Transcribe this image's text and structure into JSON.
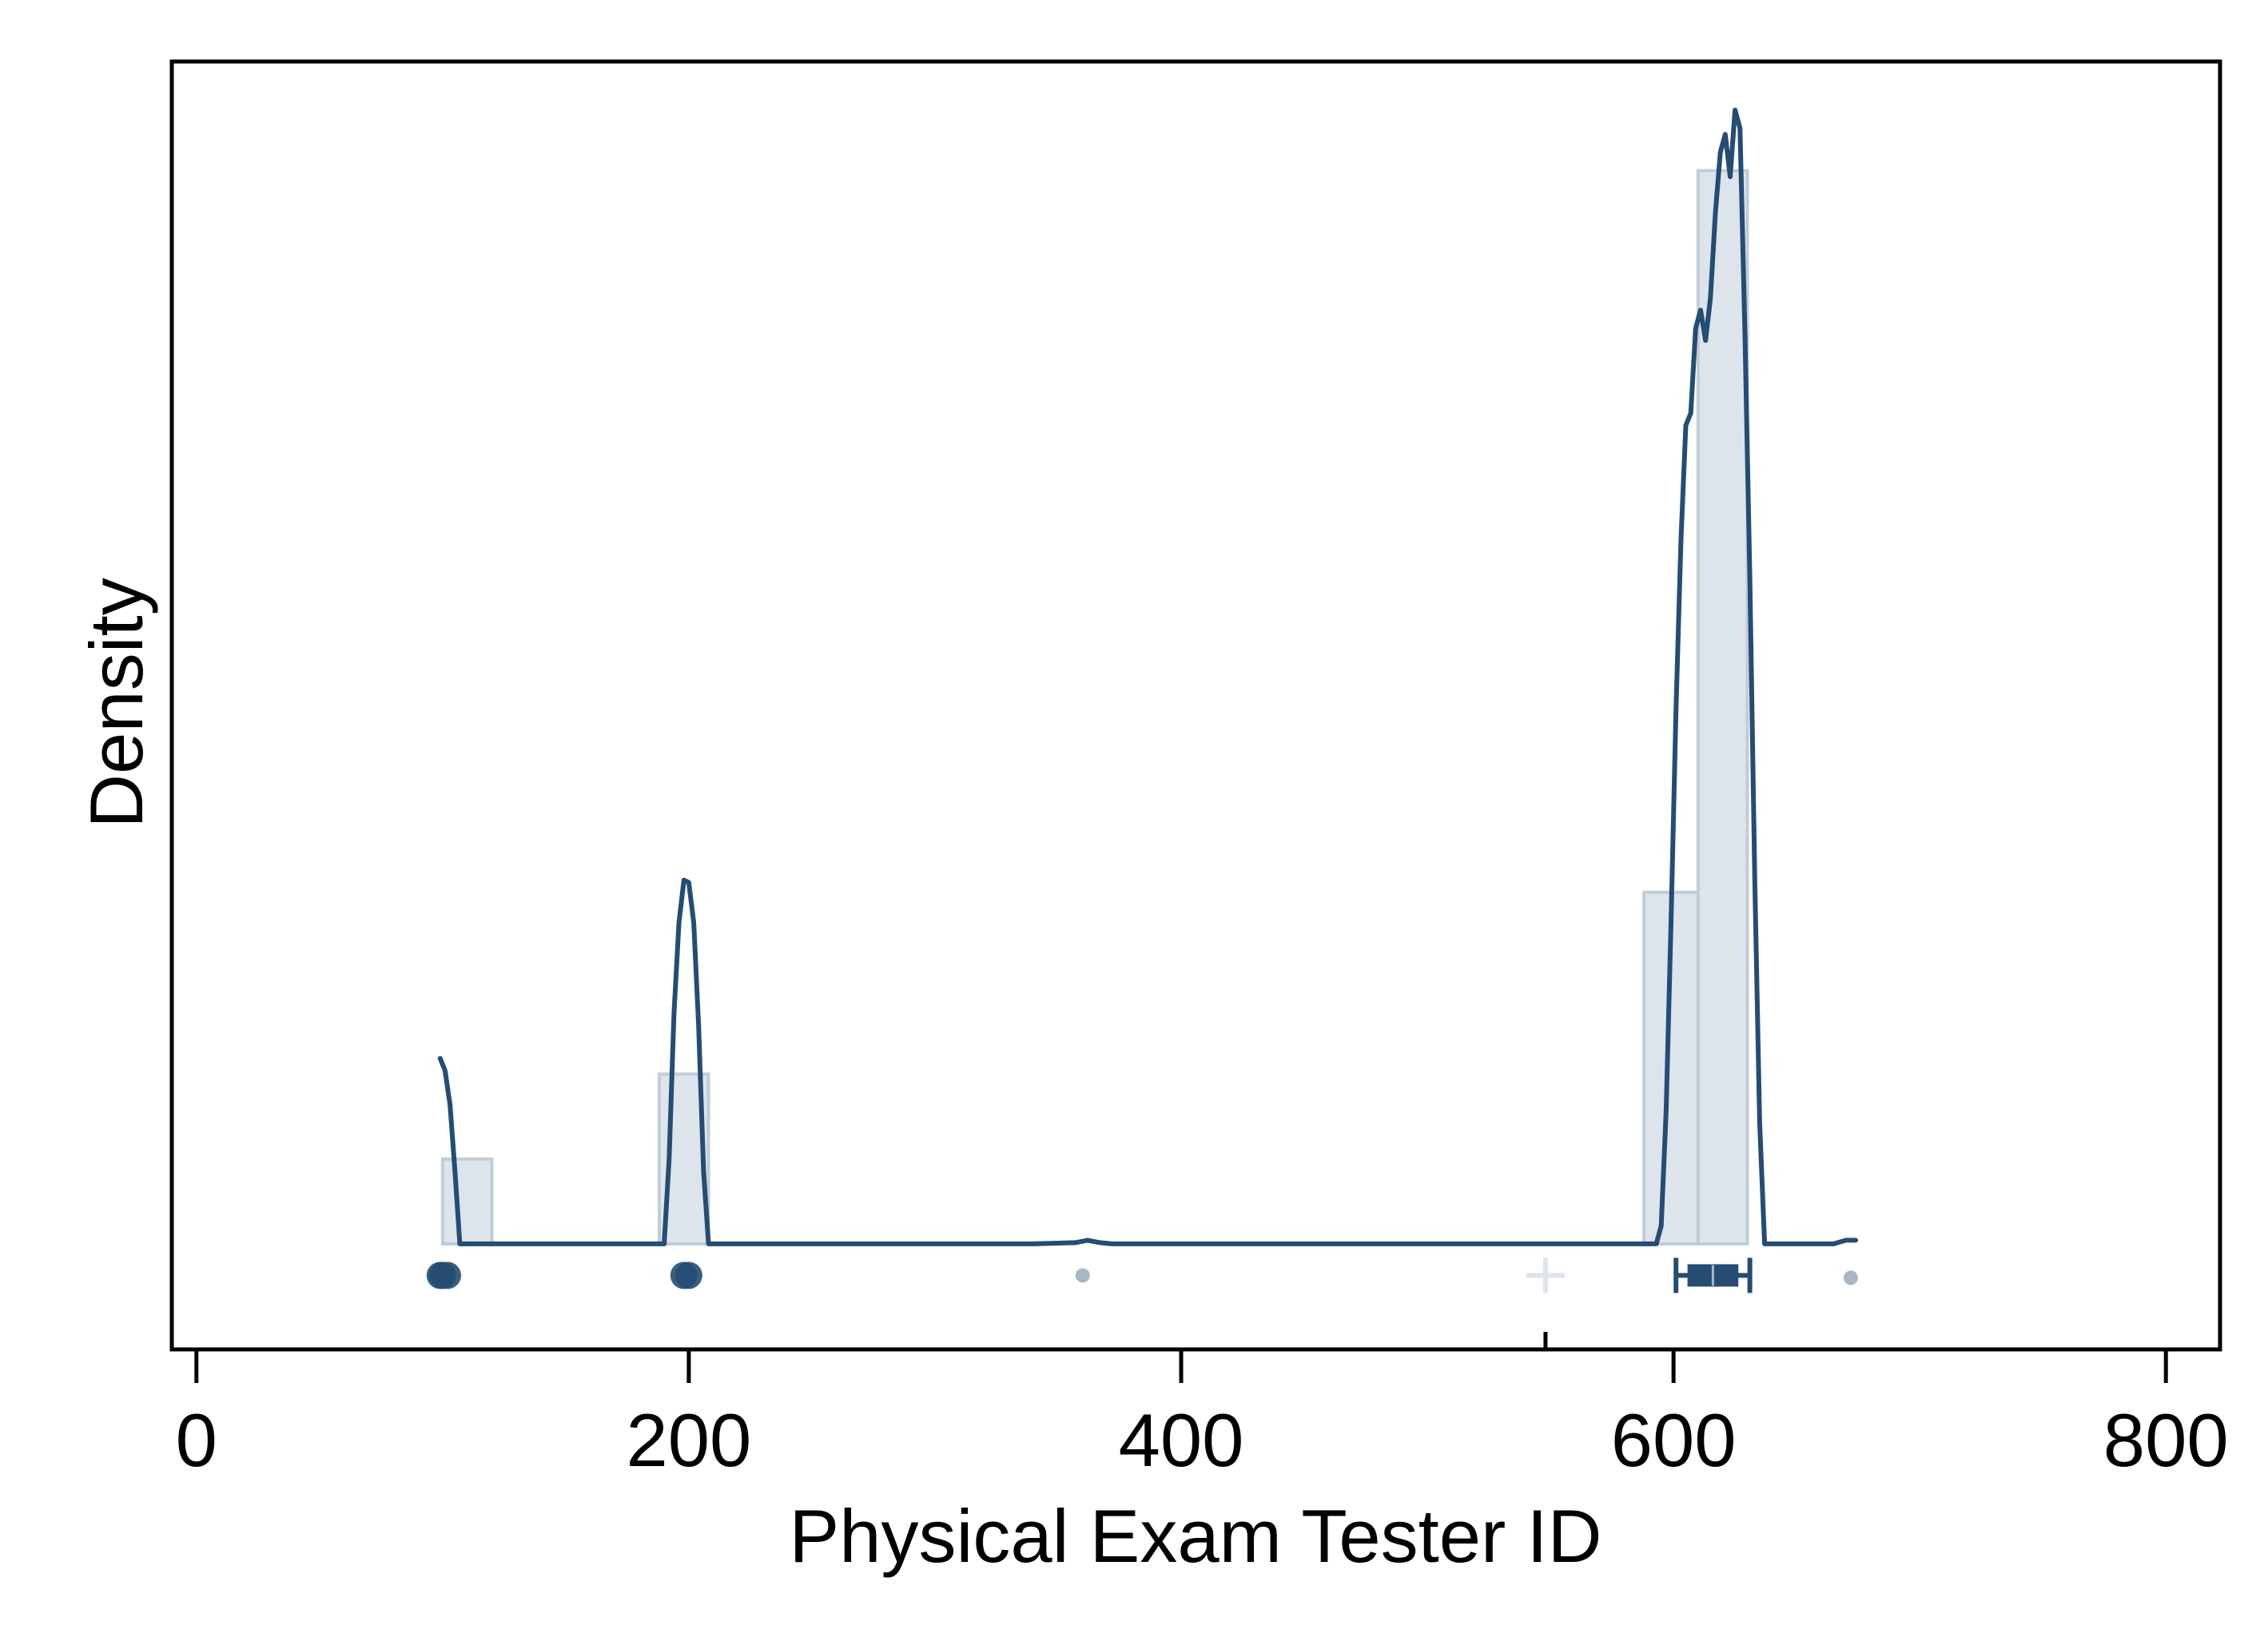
{
  "chart_data": {
    "type": "histogram-density",
    "title": "",
    "xlabel": "Physical Exam Tester ID",
    "ylabel": "Density",
    "xlim": [
      -10,
      822
    ],
    "ylim": [
      -0.00087,
      0.00975
    ],
    "x_ticks": [
      0,
      200,
      400,
      600,
      800
    ],
    "x_tick_labels": [
      "0",
      "200",
      "400",
      "600",
      "800"
    ],
    "minor_x_ticks": [
      548
    ],
    "y_ticks_shown": false,
    "grid": false,
    "legend": "none",
    "colors": {
      "bar_fill": "#dde4ec",
      "bar_stroke": "#c2ccd6",
      "density_line": "#264c73",
      "box": "#264c73",
      "outlier_light": "#a8b7c6",
      "mean_marker": "#dde4ec"
    },
    "histogram": {
      "bins": [
        {
          "x0": 100,
          "x1": 120,
          "density": 0.0007
        },
        {
          "x0": 188,
          "x1": 208,
          "density": 0.0014
        },
        {
          "x0": 588,
          "x1": 610,
          "density": 0.0029
        },
        {
          "x0": 610,
          "x1": 630,
          "density": 0.00885
        }
      ]
    },
    "density_curve": [
      [
        99,
        0.00153
      ],
      [
        101,
        0.00143
      ],
      [
        103,
        0.00115
      ],
      [
        105,
        0.0006
      ],
      [
        107,
        0.0
      ],
      [
        190,
        0.0
      ],
      [
        192,
        0.0007
      ],
      [
        194,
        0.0019
      ],
      [
        196,
        0.00265
      ],
      [
        198,
        0.003
      ],
      [
        200,
        0.00298
      ],
      [
        202,
        0.00265
      ],
      [
        204,
        0.0018
      ],
      [
        206,
        0.0006
      ],
      [
        208,
        0.0
      ],
      [
        340,
        0.0
      ],
      [
        357,
        1e-05
      ],
      [
        362,
        3e-05
      ],
      [
        367,
        1e-05
      ],
      [
        372,
        0.0
      ],
      [
        593,
        0.0
      ],
      [
        595,
        0.00015
      ],
      [
        597,
        0.0011
      ],
      [
        599,
        0.00265
      ],
      [
        601,
        0.0044
      ],
      [
        603,
        0.0058
      ],
      [
        605,
        0.00675
      ],
      [
        607,
        0.00685
      ],
      [
        609,
        0.00755
      ],
      [
        611,
        0.0077
      ],
      [
        613,
        0.00745
      ],
      [
        615,
        0.0078
      ],
      [
        617,
        0.0085
      ],
      [
        619,
        0.009
      ],
      [
        621,
        0.00915
      ],
      [
        623,
        0.0088
      ],
      [
        625,
        0.00935
      ],
      [
        627,
        0.0092
      ],
      [
        629,
        0.0075
      ],
      [
        631,
        0.0055
      ],
      [
        633,
        0.003
      ],
      [
        635,
        0.001
      ],
      [
        637,
        0.0
      ],
      [
        665,
        0.0
      ],
      [
        670,
        3e-05
      ],
      [
        674,
        3e-05
      ]
    ],
    "boxplot": {
      "whisker_low": 601,
      "q1": 606,
      "median": 616,
      "q3": 626,
      "whisker_high": 631,
      "y": -0.00026
    },
    "mean": {
      "x": 548,
      "y": -0.00026
    },
    "outliers": [
      {
        "x": 99,
        "size": "large",
        "color": "dark"
      },
      {
        "x": 100,
        "size": "large",
        "color": "dark"
      },
      {
        "x": 102,
        "size": "large",
        "color": "dark"
      },
      {
        "x": 198,
        "size": "large",
        "color": "dark"
      },
      {
        "x": 200,
        "size": "large",
        "color": "dark"
      },
      {
        "x": 360,
        "size": "small",
        "color": "light"
      },
      {
        "x": 672,
        "size": "small",
        "color": "light"
      }
    ]
  }
}
